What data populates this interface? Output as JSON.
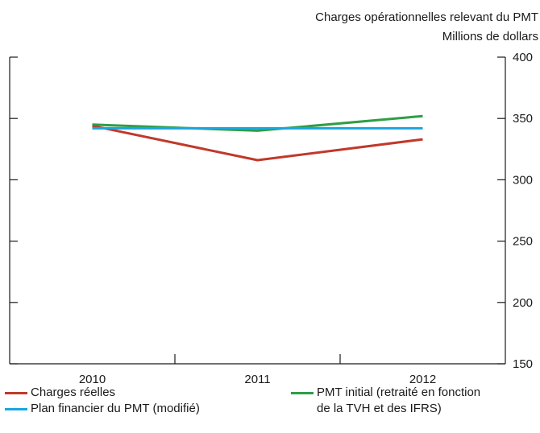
{
  "chart_data": {
    "type": "line",
    "title": "Charges opérationnelles relevant du PMT",
    "ylabel": "Millions de dollars",
    "categories": [
      "2010",
      "2011",
      "2012"
    ],
    "ylim": [
      150,
      400
    ],
    "yticks": [
      150,
      200,
      250,
      300,
      350,
      400
    ],
    "grid": false,
    "legend_position": "bottom",
    "series": [
      {
        "name": "Charges réelles",
        "color": "#c0392b",
        "values": [
          344,
          316,
          333
        ]
      },
      {
        "name": "PMT initial (retraité en fonction de la TVH et des IFRS)",
        "color": "#2e9e47",
        "values": [
          345,
          340,
          352
        ]
      },
      {
        "name": "Plan financier du PMT (modifié)",
        "color": "#1aa6e0",
        "values": [
          342,
          342,
          342
        ]
      }
    ]
  },
  "legend": {
    "left": [
      {
        "label": "Charges réelles",
        "color": "#c0392b"
      },
      {
        "label": "Plan financier du PMT (modifié)",
        "color": "#1aa6e0"
      }
    ],
    "right": {
      "line1": "PMT initial (retraité en fonction",
      "line2": "de la TVH et des IFRS)",
      "color": "#2e9e47"
    }
  }
}
